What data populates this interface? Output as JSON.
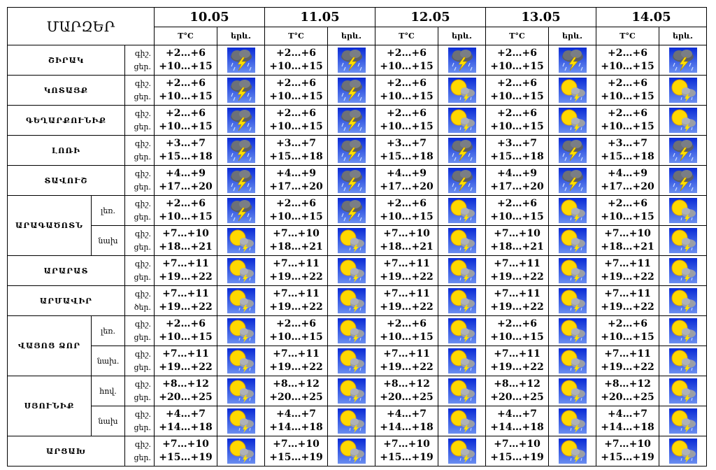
{
  "header": {
    "title": "ՄԱՐԶԵՐ",
    "dates": [
      "10.05",
      "11.05",
      "12.05",
      "13.05",
      "14.05"
    ],
    "temp_label": "T°C",
    "weather_label": "երև."
  },
  "regions": [
    {
      "name": "ՇԻՐԱԿ",
      "rows": [
        {
          "periods": [
            "գիշ.",
            "ցեր."
          ],
          "days": [
            {
              "night": "+2…+6",
              "day": "+10…+15",
              "icon": "storm"
            },
            {
              "night": "+2…+6",
              "day": "+10…+15",
              "icon": "storm"
            },
            {
              "night": "+2…+6",
              "day": "+10…+15",
              "icon": "storm"
            },
            {
              "night": "+2…+6",
              "day": "+10…+15",
              "icon": "storm"
            },
            {
              "night": "+2…+6",
              "day": "+10…+15",
              "icon": "storm"
            }
          ]
        }
      ]
    },
    {
      "name": "ԿՈՏԱՅՔ",
      "rows": [
        {
          "periods": [
            "գիշ.",
            "ցեր."
          ],
          "days": [
            {
              "night": "+2…+6",
              "day": "+10…+15",
              "icon": "storm"
            },
            {
              "night": "+2…+6",
              "day": "+10…+15",
              "icon": "storm"
            },
            {
              "night": "+2…+6",
              "day": "+10…+15",
              "icon": "sun"
            },
            {
              "night": "+2…+6",
              "day": "+10…+15",
              "icon": "sun"
            },
            {
              "night": "+2…+6",
              "day": "+10…+15",
              "icon": "sun"
            }
          ]
        }
      ]
    },
    {
      "name": "ԳԵՂԱՐՔՈՒՆԻՔ",
      "rows": [
        {
          "periods": [
            "գիշ.",
            "ցեր."
          ],
          "days": [
            {
              "night": "+2…+6",
              "day": "+10…+15",
              "icon": "storm"
            },
            {
              "night": "+2…+6",
              "day": "+10…+15",
              "icon": "storm"
            },
            {
              "night": "+2…+6",
              "day": "+10…+15",
              "icon": "sun"
            },
            {
              "night": "+2…+6",
              "day": "+10…+15",
              "icon": "sun"
            },
            {
              "night": "+2…+6",
              "day": "+10…+15",
              "icon": "sun"
            }
          ]
        }
      ]
    },
    {
      "name": "ԼՈՌԻ",
      "rows": [
        {
          "periods": [
            "գիշ.",
            "ցեր."
          ],
          "days": [
            {
              "night": "+3…+7",
              "day": "+15…+18",
              "icon": "storm"
            },
            {
              "night": "+3…+7",
              "day": "+15…+18",
              "icon": "storm"
            },
            {
              "night": "+3…+7",
              "day": "+15…+18",
              "icon": "storm"
            },
            {
              "night": "+3…+7",
              "day": "+15…+18",
              "icon": "storm"
            },
            {
              "night": "+3…+7",
              "day": "+15…+18",
              "icon": "storm"
            }
          ]
        }
      ]
    },
    {
      "name": "ՏԱՎՈՒՇ",
      "rows": [
        {
          "periods": [
            "գիշ.",
            "ցեր."
          ],
          "days": [
            {
              "night": "+4…+9",
              "day": "+17…+20",
              "icon": "storm"
            },
            {
              "night": "+4…+9",
              "day": "+17…+20",
              "icon": "storm"
            },
            {
              "night": "+4…+9",
              "day": "+17…+20",
              "icon": "storm"
            },
            {
              "night": "+4…+9",
              "day": "+17…+20",
              "icon": "storm"
            },
            {
              "night": "+4…+9",
              "day": "+17…+20",
              "icon": "storm"
            }
          ]
        }
      ]
    },
    {
      "name": "ԱՐԱԳԱԾՈՏՆ",
      "rows": [
        {
          "label": "լեռ.",
          "periods": [
            "գիշ.",
            "ցեր."
          ],
          "days": [
            {
              "night": "+2…+6",
              "day": "+10…+15",
              "icon": "storm"
            },
            {
              "night": "+2…+6",
              "day": "+10…+15",
              "icon": "storm"
            },
            {
              "night": "+2…+6",
              "day": "+10…+15",
              "icon": "sun"
            },
            {
              "night": "+2…+6",
              "day": "+10…+15",
              "icon": "sun"
            },
            {
              "night": "+2…+6",
              "day": "+10…+15",
              "icon": "sun"
            }
          ]
        },
        {
          "label": "նախ",
          "periods": [
            "գիշ.",
            "ցեր."
          ],
          "days": [
            {
              "night": "+7…+10",
              "day": "+18…+21",
              "icon": "sun"
            },
            {
              "night": "+7…+10",
              "day": "+18…+21",
              "icon": "sun"
            },
            {
              "night": "+7…+10",
              "day": "+18…+21",
              "icon": "sun"
            },
            {
              "night": "+7…+10",
              "day": "+18…+21",
              "icon": "sun"
            },
            {
              "night": "+7…+10",
              "day": "+18…+21",
              "icon": "sun"
            }
          ]
        }
      ]
    },
    {
      "name": "ԱՐԱՐԱՏ",
      "rows": [
        {
          "periods": [
            "գիշ.",
            "ցեր."
          ],
          "days": [
            {
              "night": "+7…+11",
              "day": "+19…+22",
              "icon": "sun"
            },
            {
              "night": "+7…+11",
              "day": "+19…+22",
              "icon": "sun"
            },
            {
              "night": "+7…+11",
              "day": "+19…+22",
              "icon": "sun"
            },
            {
              "night": "+7…+11",
              "day": "+19…+22",
              "icon": "sun"
            },
            {
              "night": "+7…+11",
              "day": "+19…+22",
              "icon": "sun"
            }
          ]
        }
      ]
    },
    {
      "name": "ԱՐՄԱՎԻՐ",
      "rows": [
        {
          "periods": [
            "գիշ.",
            "ծեր."
          ],
          "days": [
            {
              "night": "+7…+11",
              "day": "+19…+22",
              "icon": "sun"
            },
            {
              "night": "+7…+11",
              "day": "+19…+22",
              "icon": "sun"
            },
            {
              "night": "+7…+11",
              "day": "+19…+22",
              "icon": "sun"
            },
            {
              "night": "+7…+11",
              "day": "+19…+22",
              "icon": "sun"
            },
            {
              "night": "+7…+11",
              "day": "+19…+22",
              "icon": "sun"
            }
          ]
        }
      ]
    },
    {
      "name": "ՎԱՅՈՑ ՁՈՐ",
      "rows": [
        {
          "label": "լեռ.",
          "periods": [
            "գիշ.",
            "ցեր."
          ],
          "days": [
            {
              "night": "+2…+6",
              "day": "+10…+15",
              "icon": "sun"
            },
            {
              "night": "+2…+6",
              "day": "+10…+15",
              "icon": "sun"
            },
            {
              "night": "+2…+6",
              "day": "+10…+15",
              "icon": "sun"
            },
            {
              "night": "+2…+6",
              "day": "+10…+15",
              "icon": "sun"
            },
            {
              "night": "+2…+6",
              "day": "+10…+15",
              "icon": "sun"
            }
          ]
        },
        {
          "label": "նախ.",
          "periods": [
            "գիշ.",
            "ցեր."
          ],
          "days": [
            {
              "night": "+7…+11",
              "day": "+19…+22",
              "icon": "sun"
            },
            {
              "night": "+7…+11",
              "day": "+19…+22",
              "icon": "sun"
            },
            {
              "night": "+7…+11",
              "day": "+19…+22",
              "icon": "sun"
            },
            {
              "night": "+7…+11",
              "day": "+19…+22",
              "icon": "sun"
            },
            {
              "night": "+7…+11",
              "day": "+19…+22",
              "icon": "sun"
            }
          ]
        }
      ]
    },
    {
      "name": "ՍՅՈՒՆԻՔ",
      "rows": [
        {
          "label": "հով.",
          "periods": [
            "գիշ.",
            "ցեր."
          ],
          "days": [
            {
              "night": "+8…+12",
              "day": "+20…+25",
              "icon": "sun"
            },
            {
              "night": "+8…+12",
              "day": "+20…+25",
              "icon": "sun"
            },
            {
              "night": "+8…+12",
              "day": "+20…+25",
              "icon": "sun"
            },
            {
              "night": "+8…+12",
              "day": "+20…+25",
              "icon": "sun"
            },
            {
              "night": "+8…+12",
              "day": "+20…+25",
              "icon": "sun"
            }
          ]
        },
        {
          "label": "նախ",
          "periods": [
            "գիշ.",
            "ցեր."
          ],
          "days": [
            {
              "night": "+4…+7",
              "day": "+14…+18",
              "icon": "sun"
            },
            {
              "night": "+4…+7",
              "day": "+14…+18",
              "icon": "sun"
            },
            {
              "night": "+4…+7",
              "day": "+14…+18",
              "icon": "sun"
            },
            {
              "night": "+4…+7",
              "day": "+14…+18",
              "icon": "sun"
            },
            {
              "night": "+4…+7",
              "day": "+14…+18",
              "icon": "sun"
            }
          ]
        }
      ]
    },
    {
      "name": "ԱՐՑԱԽ",
      "rows": [
        {
          "periods": [
            "գիշ.",
            "ցեր."
          ],
          "days": [
            {
              "night": "+7…+10",
              "day": "+15…+19",
              "icon": "sun"
            },
            {
              "night": "+7…+10",
              "day": "+15…+19",
              "icon": "sun"
            },
            {
              "night": "+7…+10",
              "day": "+15…+19",
              "icon": "sun"
            },
            {
              "night": "+7…+10",
              "day": "+15…+19",
              "icon": "sun"
            },
            {
              "night": "+7…+10",
              "day": "+15…+19",
              "icon": "sun"
            }
          ]
        }
      ]
    }
  ]
}
